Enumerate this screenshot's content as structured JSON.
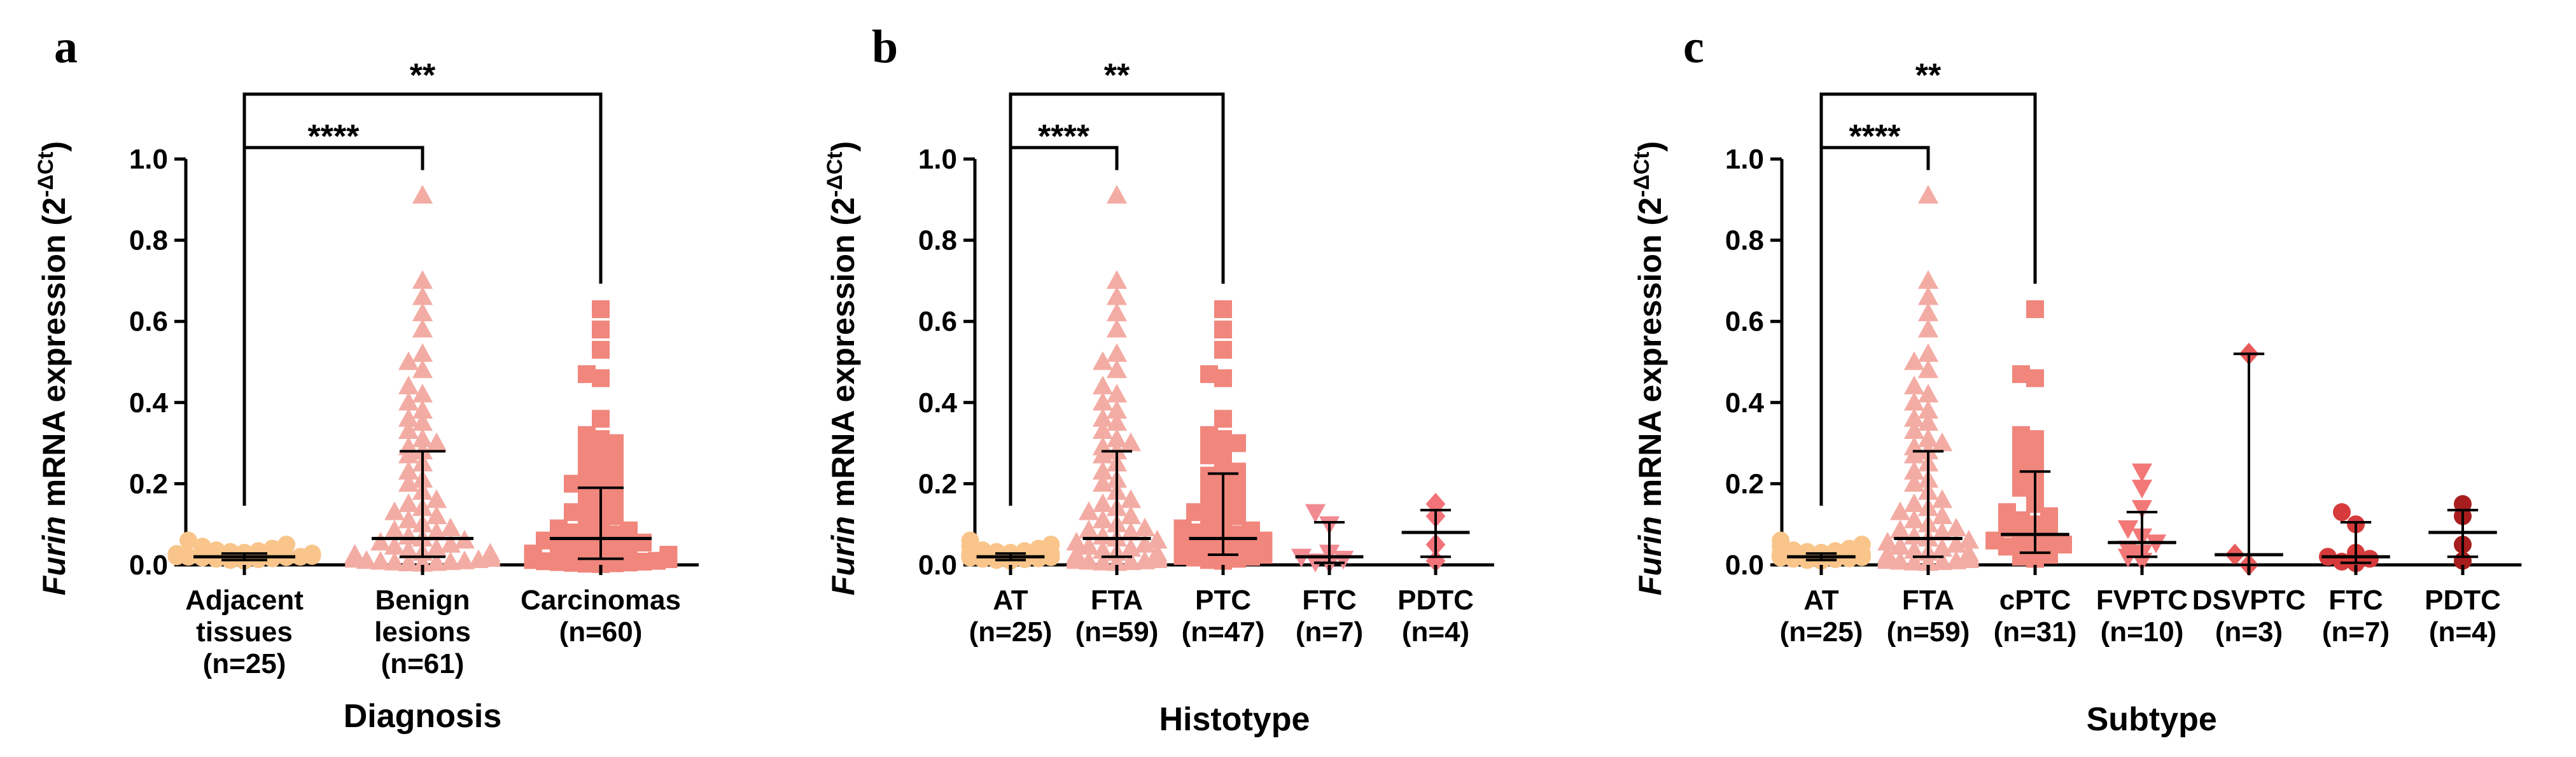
{
  "chart_data": [
    {
      "type": "scatter",
      "panel": "a",
      "xlabel": "Diagnosis",
      "ylabel_italic": "Furin",
      "ylabel_rest": " mRNA expression (2",
      "ylabel_sup": "-ΔCt",
      "ylabel_close": ")",
      "ylim": [
        0,
        1.0
      ],
      "yticks": [
        "0.0",
        "0.2",
        "0.4",
        "0.6",
        "0.8",
        "1.0"
      ],
      "groups": [
        {
          "label": [
            "Adjacent",
            "tissues",
            "(n=25)"
          ],
          "marker": "circle",
          "color": "#f9c58a",
          "median": 0.02,
          "q1": 0.012,
          "q3": 0.028,
          "values": [
            0.01,
            0.012,
            0.014,
            0.015,
            0.016,
            0.018,
            0.019,
            0.02,
            0.02,
            0.021,
            0.022,
            0.023,
            0.024,
            0.025,
            0.026,
            0.027,
            0.028,
            0.03,
            0.032,
            0.034,
            0.036,
            0.04,
            0.045,
            0.05,
            0.06
          ]
        },
        {
          "label": [
            "Benign",
            "lesions",
            "(n=61)"
          ],
          "marker": "triangle",
          "color": "#f3aca4",
          "median": 0.065,
          "q1": 0.02,
          "q3": 0.28,
          "values": [
            0.91,
            0.7,
            0.66,
            0.62,
            0.58,
            0.52,
            0.5,
            0.48,
            0.44,
            0.42,
            0.4,
            0.38,
            0.36,
            0.35,
            0.33,
            0.31,
            0.3,
            0.29,
            0.28,
            0.27,
            0.25,
            0.23,
            0.21,
            0.2,
            0.18,
            0.16,
            0.15,
            0.14,
            0.13,
            0.12,
            0.11,
            0.1,
            0.09,
            0.085,
            0.08,
            0.07,
            0.065,
            0.06,
            0.055,
            0.05,
            0.045,
            0.04,
            0.035,
            0.03,
            0.028,
            0.025,
            0.022,
            0.02,
            0.018,
            0.016,
            0.015,
            0.013,
            0.012,
            0.01,
            0.009,
            0.008,
            0.007,
            0.006,
            0.005,
            0.004,
            0.003
          ]
        },
        {
          "label": [
            "Carcinomas",
            "(n=60)"
          ],
          "marker": "square",
          "color": "#f0867c",
          "median": 0.065,
          "q1": 0.015,
          "q3": 0.19,
          "values": [
            0.63,
            0.58,
            0.53,
            0.47,
            0.46,
            0.36,
            0.32,
            0.31,
            0.3,
            0.29,
            0.28,
            0.27,
            0.25,
            0.24,
            0.23,
            0.22,
            0.21,
            0.2,
            0.19,
            0.18,
            0.17,
            0.16,
            0.15,
            0.14,
            0.13,
            0.12,
            0.11,
            0.1,
            0.09,
            0.085,
            0.08,
            0.075,
            0.07,
            0.065,
            0.06,
            0.055,
            0.05,
            0.045,
            0.04,
            0.035,
            0.03,
            0.028,
            0.025,
            0.022,
            0.02,
            0.018,
            0.016,
            0.014,
            0.012,
            0.01,
            0.009,
            0.008,
            0.007,
            0.006,
            0.005,
            0.004,
            0.003,
            0.002,
            0.015,
            0.05
          ]
        }
      ],
      "brackets": [
        {
          "from": 0,
          "to": 1,
          "level": 1,
          "label": "****"
        },
        {
          "from": 0,
          "to": 2,
          "level": 2,
          "label": "**"
        }
      ]
    },
    {
      "type": "scatter",
      "panel": "b",
      "xlabel": "Histotype",
      "ylabel_italic": "Furin",
      "ylabel_rest": " mRNA expression (2",
      "ylabel_sup": "-ΔCt",
      "ylabel_close": ")",
      "ylim": [
        0,
        1.0
      ],
      "yticks": [
        "0.0",
        "0.2",
        "0.4",
        "0.6",
        "0.8",
        "1.0"
      ],
      "groups": [
        {
          "label": [
            "AT",
            "(n=25)"
          ],
          "marker": "circle",
          "color": "#f9c58a",
          "median": 0.02,
          "q1": 0.012,
          "q3": 0.028,
          "values": [
            0.01,
            0.012,
            0.014,
            0.015,
            0.016,
            0.018,
            0.019,
            0.02,
            0.02,
            0.021,
            0.022,
            0.023,
            0.024,
            0.025,
            0.026,
            0.027,
            0.028,
            0.03,
            0.032,
            0.034,
            0.036,
            0.04,
            0.045,
            0.05,
            0.06
          ]
        },
        {
          "label": [
            "FTA",
            "(n=59)"
          ],
          "marker": "triangle",
          "color": "#f3aca4",
          "median": 0.065,
          "q1": 0.02,
          "q3": 0.28,
          "values": [
            0.91,
            0.7,
            0.66,
            0.62,
            0.58,
            0.52,
            0.5,
            0.48,
            0.44,
            0.42,
            0.4,
            0.38,
            0.36,
            0.35,
            0.33,
            0.31,
            0.3,
            0.29,
            0.28,
            0.27,
            0.25,
            0.23,
            0.21,
            0.2,
            0.18,
            0.16,
            0.15,
            0.14,
            0.13,
            0.12,
            0.11,
            0.1,
            0.09,
            0.085,
            0.08,
            0.07,
            0.065,
            0.06,
            0.055,
            0.05,
            0.045,
            0.04,
            0.035,
            0.03,
            0.028,
            0.025,
            0.022,
            0.02,
            0.018,
            0.016,
            0.015,
            0.013,
            0.012,
            0.01,
            0.009,
            0.008,
            0.007,
            0.006,
            0.005
          ]
        },
        {
          "label": [
            "PTC",
            "(n=47)"
          ],
          "marker": "square",
          "color": "#f0867c",
          "median": 0.065,
          "q1": 0.025,
          "q3": 0.225,
          "values": [
            0.63,
            0.58,
            0.53,
            0.47,
            0.46,
            0.36,
            0.32,
            0.31,
            0.3,
            0.29,
            0.28,
            0.27,
            0.25,
            0.23,
            0.22,
            0.21,
            0.2,
            0.19,
            0.18,
            0.16,
            0.15,
            0.14,
            0.13,
            0.12,
            0.11,
            0.1,
            0.09,
            0.085,
            0.08,
            0.075,
            0.07,
            0.065,
            0.06,
            0.055,
            0.05,
            0.045,
            0.04,
            0.035,
            0.03,
            0.028,
            0.025,
            0.022,
            0.02,
            0.018,
            0.015,
            0.012,
            0.01
          ]
        },
        {
          "label": [
            "FTC",
            "(n=7)"
          ],
          "marker": "triangle-down",
          "color": "#f28a92",
          "median": 0.02,
          "q1": 0.005,
          "q3": 0.105,
          "values": [
            0.13,
            0.1,
            0.03,
            0.02,
            0.015,
            0.008,
            0.004
          ]
        },
        {
          "label": [
            "PDTC",
            "(n=4)"
          ],
          "marker": "diamond",
          "color": "#f2727a",
          "median": 0.08,
          "q1": 0.02,
          "q3": 0.135,
          "values": [
            0.15,
            0.12,
            0.05,
            0.01
          ]
        }
      ],
      "brackets": [
        {
          "from": 0,
          "to": 1,
          "level": 1,
          "label": "****"
        },
        {
          "from": 0,
          "to": 2,
          "level": 2,
          "label": "**"
        }
      ]
    },
    {
      "type": "scatter",
      "panel": "c",
      "xlabel": "Subtype",
      "ylabel_italic": "Furin",
      "ylabel_rest": " mRNA expression (2",
      "ylabel_sup": "-ΔCt",
      "ylabel_close": ")",
      "ylim": [
        0,
        1.0
      ],
      "yticks": [
        "0.0",
        "0.2",
        "0.4",
        "0.6",
        "0.8",
        "1.0"
      ],
      "groups": [
        {
          "label": [
            "AT",
            "(n=25)"
          ],
          "marker": "circle",
          "color": "#f9c58a",
          "median": 0.02,
          "q1": 0.012,
          "q3": 0.028,
          "values": [
            0.01,
            0.012,
            0.014,
            0.015,
            0.016,
            0.018,
            0.019,
            0.02,
            0.02,
            0.021,
            0.022,
            0.023,
            0.024,
            0.025,
            0.026,
            0.027,
            0.028,
            0.03,
            0.032,
            0.034,
            0.036,
            0.04,
            0.045,
            0.05,
            0.06
          ]
        },
        {
          "label": [
            "FTA",
            "(n=59)"
          ],
          "marker": "triangle",
          "color": "#f3aca4",
          "median": 0.065,
          "q1": 0.02,
          "q3": 0.28,
          "values": [
            0.91,
            0.7,
            0.66,
            0.62,
            0.58,
            0.52,
            0.5,
            0.48,
            0.44,
            0.42,
            0.4,
            0.38,
            0.36,
            0.35,
            0.33,
            0.31,
            0.3,
            0.29,
            0.28,
            0.27,
            0.25,
            0.23,
            0.21,
            0.2,
            0.18,
            0.16,
            0.15,
            0.14,
            0.13,
            0.12,
            0.11,
            0.1,
            0.09,
            0.085,
            0.08,
            0.07,
            0.065,
            0.06,
            0.055,
            0.05,
            0.045,
            0.04,
            0.035,
            0.03,
            0.028,
            0.025,
            0.022,
            0.02,
            0.018,
            0.016,
            0.015,
            0.013,
            0.012,
            0.01,
            0.009,
            0.008,
            0.007,
            0.006,
            0.005
          ]
        },
        {
          "label": [
            "cPTC",
            "(n=31)"
          ],
          "marker": "square",
          "color": "#f0867c",
          "median": 0.075,
          "q1": 0.03,
          "q3": 0.23,
          "values": [
            0.63,
            0.47,
            0.46,
            0.32,
            0.31,
            0.3,
            0.29,
            0.27,
            0.25,
            0.23,
            0.21,
            0.19,
            0.17,
            0.15,
            0.13,
            0.12,
            0.11,
            0.1,
            0.09,
            0.08,
            0.075,
            0.07,
            0.06,
            0.05,
            0.045,
            0.04,
            0.035,
            0.03,
            0.025,
            0.02,
            0.015
          ]
        },
        {
          "label": [
            "FVPTC",
            "(n=10)"
          ],
          "marker": "triangle-down",
          "color": "#f27878",
          "median": 0.055,
          "q1": 0.02,
          "q3": 0.13,
          "values": [
            0.23,
            0.19,
            0.14,
            0.09,
            0.07,
            0.055,
            0.04,
            0.03,
            0.02,
            0.01
          ]
        },
        {
          "label": [
            "DSVPTC",
            "(n=3)"
          ],
          "marker": "diamond",
          "color": "#e85a5a",
          "median": 0.025,
          "q1": 0.0,
          "q3": 0.52,
          "values": [
            0.52,
            0.025,
            0.0
          ]
        },
        {
          "label": [
            "FTC",
            "(n=7)"
          ],
          "marker": "circle",
          "color": "#d63a3a",
          "median": 0.02,
          "q1": 0.005,
          "q3": 0.105,
          "values": [
            0.13,
            0.1,
            0.03,
            0.02,
            0.015,
            0.008,
            0.004
          ]
        },
        {
          "label": [
            "PDTC",
            "(n=4)"
          ],
          "marker": "circle",
          "color": "#a81e1e",
          "median": 0.08,
          "q1": 0.02,
          "q3": 0.135,
          "values": [
            0.15,
            0.12,
            0.05,
            0.01
          ]
        }
      ],
      "brackets": [
        {
          "from": 0,
          "to": 1,
          "level": 1,
          "label": "****"
        },
        {
          "from": 0,
          "to": 2,
          "level": 2,
          "label": "**"
        }
      ]
    }
  ]
}
